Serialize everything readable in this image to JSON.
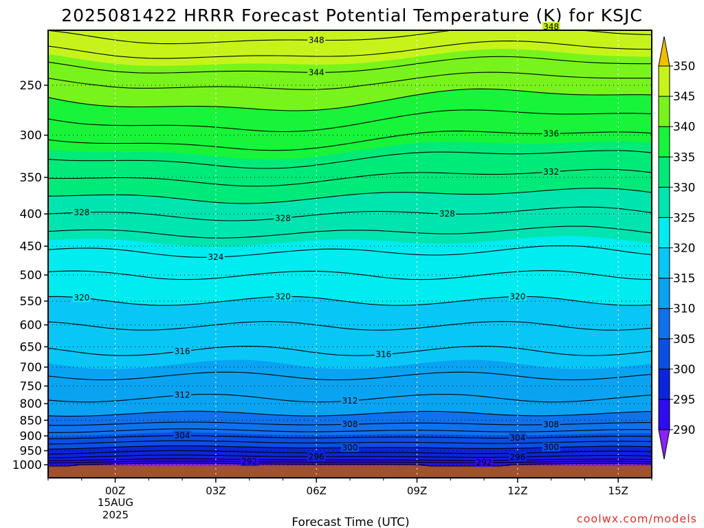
{
  "chart_data": {
    "type": "heatmap",
    "title": "2025081422 HRRR Forecast Potential Temperature (K) for KSJC",
    "xlabel": "Forecast Time (UTC)",
    "ylabel": "",
    "credit": "coolwx.com/models",
    "x_ticks": [
      {
        "t": 0,
        "label": "00Z"
      },
      {
        "t": 3,
        "label": "03Z"
      },
      {
        "t": 6,
        "label": "06Z"
      },
      {
        "t": 9,
        "label": "09Z"
      },
      {
        "t": 12,
        "label": "12Z"
      },
      {
        "t": 15,
        "label": "15Z"
      }
    ],
    "x_date_line1": "15AUG",
    "x_date_line2": "2025",
    "xlim": [
      -2,
      16
    ],
    "y_scale": "log",
    "ylim": [
      1040,
      200
    ],
    "y_ticks": [
      250,
      300,
      350,
      400,
      450,
      500,
      550,
      600,
      650,
      700,
      750,
      800,
      850,
      900,
      950,
      1000
    ],
    "surface_pressure": 1005,
    "colorbar": {
      "levels": [
        290,
        295,
        300,
        305,
        310,
        315,
        320,
        325,
        330,
        335,
        340,
        345,
        350
      ],
      "colors": [
        "#8a23f5",
        "#2d0cf0",
        "#0b25dc",
        "#0a4fe4",
        "#0f72ec",
        "#0aa3f2",
        "#08c7f6",
        "#00ecf0",
        "#00e5b0",
        "#00ea7a",
        "#17f43a",
        "#78f41c",
        "#c6f41a",
        "#ffee10",
        "#f0c000"
      ]
    },
    "contour_interval": 4,
    "contours": [
      {
        "level": 348,
        "labels": [
          {
            "t": 6.0,
            "text": "348"
          },
          {
            "t": 13.0,
            "text": "348"
          }
        ]
      },
      {
        "level": 344,
        "labels": [
          {
            "t": 6.0,
            "text": "344"
          }
        ]
      },
      {
        "level": 336,
        "labels": [
          {
            "t": 13.0,
            "text": "336"
          }
        ]
      },
      {
        "level": 332,
        "labels": [
          {
            "t": 13.0,
            "text": "332"
          }
        ]
      },
      {
        "level": 328,
        "labels": [
          {
            "t": -1.0,
            "text": "328"
          },
          {
            "t": 5.0,
            "text": "328"
          },
          {
            "t": 9.9,
            "text": "328"
          }
        ]
      },
      {
        "level": 324,
        "labels": [
          {
            "t": 3.0,
            "text": "324"
          }
        ]
      },
      {
        "level": 320,
        "labels": [
          {
            "t": -1.0,
            "text": "320"
          },
          {
            "t": 5.0,
            "text": "320"
          },
          {
            "t": 12.0,
            "text": "320"
          }
        ]
      },
      {
        "level": 316,
        "labels": [
          {
            "t": 2.0,
            "text": "316"
          },
          {
            "t": 8.0,
            "text": "316"
          }
        ]
      },
      {
        "level": 312,
        "labels": [
          {
            "t": 2.0,
            "text": "312"
          },
          {
            "t": 7.0,
            "text": "312"
          }
        ]
      },
      {
        "level": 308,
        "labels": [
          {
            "t": 7.0,
            "text": "308"
          },
          {
            "t": 13.0,
            "text": "308"
          }
        ]
      },
      {
        "level": 304,
        "labels": [
          {
            "t": 2.0,
            "text": "304"
          },
          {
            "t": 12.0,
            "text": "304"
          }
        ]
      },
      {
        "level": 300,
        "labels": [
          {
            "t": 7.0,
            "text": "300"
          },
          {
            "t": 13.0,
            "text": "300"
          }
        ]
      },
      {
        "level": 296,
        "labels": [
          {
            "t": 6.0,
            "text": "296"
          },
          {
            "t": 12.0,
            "text": "296"
          }
        ]
      },
      {
        "level": 292,
        "labels": [
          {
            "t": 4.0,
            "text": "292"
          },
          {
            "t": 11.0,
            "text": "292"
          }
        ]
      }
    ],
    "grid": true,
    "legend": "right colorbar"
  }
}
